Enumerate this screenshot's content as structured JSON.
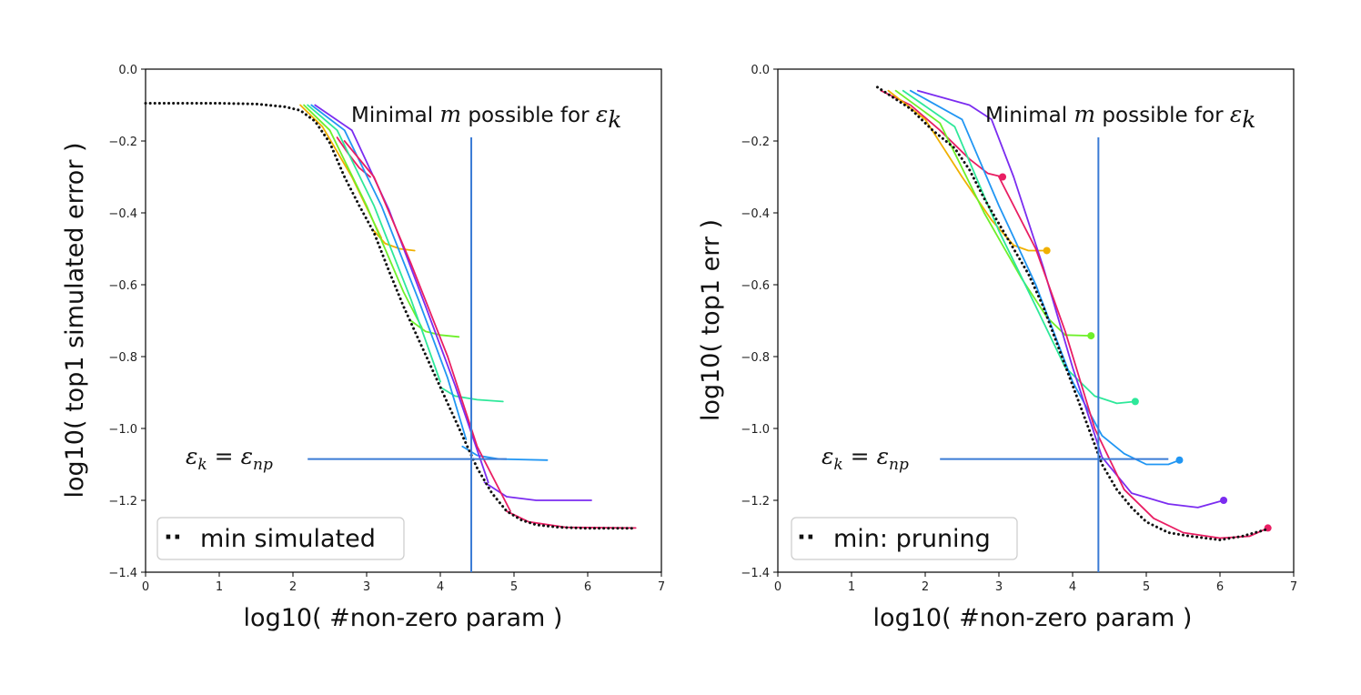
{
  "chart_data": [
    {
      "type": "line",
      "id": "left",
      "xlabel": "log10( #non-zero param )",
      "ylabel": "log10( top1 simulated error )",
      "xlim": [
        0,
        7
      ],
      "ylim": [
        -1.4,
        0.0
      ],
      "xticks": [
        "0",
        "1",
        "2",
        "3",
        "4",
        "5",
        "6",
        "7"
      ],
      "yticks": [
        "0.0",
        "−0.2",
        "−0.4",
        "−0.6",
        "−0.8",
        "−1.0",
        "−1.2",
        "−1.4"
      ],
      "annotation": {
        "text": "Minimal m possible for εk",
        "prefix": "Minimal ",
        "var": "m",
        "mid": " possible for ",
        "eps": "ε",
        "sub": "k"
      },
      "eps_label": {
        "eps1": "ε",
        "sub1": "k",
        "eq": " = ",
        "eps2": "ε",
        "sub2": "np"
      },
      "vline_x": 4.42,
      "hline": {
        "y": -1.085,
        "x_start": 2.2,
        "x_end": 4.9
      },
      "legend": {
        "text": "min simulated",
        "marker": "··"
      },
      "series": [
        {
          "name": "c1",
          "color": "#e91e63",
          "points": [
            [
              2.6,
              -0.19
            ],
            [
              2.75,
              -0.235
            ],
            [
              2.9,
              -0.275
            ],
            [
              3.05,
              -0.3
            ]
          ]
        },
        {
          "name": "c2",
          "color": "#f0b000",
          "points": [
            [
              3.1,
              -0.45
            ],
            [
              3.25,
              -0.485
            ],
            [
              3.45,
              -0.5
            ],
            [
              3.65,
              -0.505
            ]
          ]
        },
        {
          "name": "c3",
          "color": "#6ef02a",
          "points": [
            [
              3.6,
              -0.7
            ],
            [
              3.8,
              -0.73
            ],
            [
              4.0,
              -0.74
            ],
            [
              4.25,
              -0.745
            ]
          ]
        },
        {
          "name": "c4",
          "color": "#2ee89a",
          "points": [
            [
              4.0,
              -0.885
            ],
            [
              4.2,
              -0.91
            ],
            [
              4.5,
              -0.92
            ],
            [
              4.85,
              -0.925
            ]
          ]
        },
        {
          "name": "c5",
          "color": "#2196f3",
          "points": [
            [
              4.3,
              -1.05
            ],
            [
              4.5,
              -1.075
            ],
            [
              4.8,
              -1.085
            ],
            [
              5.45,
              -1.088
            ]
          ]
        },
        {
          "name": "c6",
          "color": "#7b2cf0",
          "points": [
            [
              4.6,
              -1.15
            ],
            [
              4.9,
              -1.19
            ],
            [
              5.3,
              -1.2
            ],
            [
              6.05,
              -1.2
            ]
          ]
        },
        {
          "name": "c7",
          "color": "#e91e63",
          "points": [
            [
              4.9,
              -1.23
            ],
            [
              5.2,
              -1.26
            ],
            [
              5.7,
              -1.275
            ],
            [
              6.65,
              -1.277
            ]
          ]
        },
        {
          "name": "f1",
          "color": "#f0b000",
          "points": [
            [
              2.1,
              -0.1
            ],
            [
              2.4,
              -0.16
            ],
            [
              2.8,
              -0.3
            ],
            [
              3.2,
              -0.47
            ]
          ]
        },
        {
          "name": "f2",
          "color": "#6ef02a",
          "points": [
            [
              2.15,
              -0.1
            ],
            [
              2.5,
              -0.17
            ],
            [
              3.0,
              -0.38
            ],
            [
              3.5,
              -0.62
            ],
            [
              3.75,
              -0.72
            ]
          ]
        },
        {
          "name": "f3",
          "color": "#2ee89a",
          "points": [
            [
              2.2,
              -0.1
            ],
            [
              2.6,
              -0.17
            ],
            [
              3.1,
              -0.38
            ],
            [
              3.6,
              -0.64
            ],
            [
              4.0,
              -0.87
            ]
          ]
        },
        {
          "name": "f4",
          "color": "#2196f3",
          "points": [
            [
              2.25,
              -0.1
            ],
            [
              2.7,
              -0.17
            ],
            [
              3.2,
              -0.38
            ],
            [
              3.7,
              -0.64
            ],
            [
              4.1,
              -0.86
            ],
            [
              4.35,
              -1.03
            ]
          ]
        },
        {
          "name": "f5",
          "color": "#7b2cf0",
          "points": [
            [
              2.3,
              -0.1
            ],
            [
              2.8,
              -0.17
            ],
            [
              3.3,
              -0.39
            ],
            [
              3.8,
              -0.66
            ],
            [
              4.2,
              -0.88
            ],
            [
              4.65,
              -1.15
            ]
          ]
        },
        {
          "name": "f6",
          "color": "#e91e63",
          "points": [
            [
              2.7,
              -0.2
            ],
            [
              3.1,
              -0.3
            ],
            [
              3.6,
              -0.54
            ],
            [
              4.1,
              -0.8
            ],
            [
              4.5,
              -1.05
            ],
            [
              4.95,
              -1.23
            ]
          ]
        },
        {
          "name": "min",
          "color": "#111111",
          "style": "dotted",
          "points": [
            [
              0.0,
              -0.095
            ],
            [
              1.0,
              -0.095
            ],
            [
              1.5,
              -0.097
            ],
            [
              1.9,
              -0.105
            ],
            [
              2.1,
              -0.115
            ],
            [
              2.3,
              -0.145
            ],
            [
              2.5,
              -0.205
            ],
            [
              2.7,
              -0.3
            ],
            [
              2.9,
              -0.38
            ],
            [
              3.1,
              -0.455
            ],
            [
              3.3,
              -0.56
            ],
            [
              3.5,
              -0.66
            ],
            [
              3.7,
              -0.75
            ],
            [
              3.9,
              -0.84
            ],
            [
              4.1,
              -0.93
            ],
            [
              4.3,
              -1.02
            ],
            [
              4.5,
              -1.11
            ],
            [
              4.7,
              -1.18
            ],
            [
              4.9,
              -1.23
            ],
            [
              5.1,
              -1.255
            ],
            [
              5.3,
              -1.268
            ],
            [
              5.6,
              -1.275
            ],
            [
              6.0,
              -1.278
            ],
            [
              6.65,
              -1.278
            ]
          ]
        }
      ]
    },
    {
      "type": "line",
      "id": "right",
      "xlabel": "log10( #non-zero param )",
      "ylabel": "log10( top1 err )",
      "xlim": [
        0,
        7
      ],
      "ylim": [
        -1.4,
        0.0
      ],
      "xticks": [
        "0",
        "1",
        "2",
        "3",
        "4",
        "5",
        "6",
        "7"
      ],
      "yticks": [
        "0.0",
        "−0.2",
        "−0.4",
        "−0.6",
        "−0.8",
        "−1.0",
        "−1.2",
        "−1.4"
      ],
      "annotation": {
        "text": "Minimal m possible for εk",
        "prefix": "Minimal ",
        "var": "m",
        "mid": " possible for ",
        "eps": "ε",
        "sub": "k"
      },
      "eps_label": {
        "eps1": "ε",
        "sub1": "k",
        "eq": " = ",
        "eps2": "ε",
        "sub2": "np"
      },
      "vline_x": 4.35,
      "hline": {
        "y": -1.085,
        "x_start": 2.2,
        "x_end": 5.3
      },
      "legend": {
        "text": "min: pruning",
        "marker": "··"
      },
      "series": [
        {
          "name": "c1",
          "color": "#e91e63",
          "end_marker": true,
          "points": [
            [
              1.4,
              -0.06
            ],
            [
              1.8,
              -0.1
            ],
            [
              2.2,
              -0.17
            ],
            [
              2.6,
              -0.25
            ],
            [
              2.85,
              -0.29
            ],
            [
              3.05,
              -0.3
            ]
          ]
        },
        {
          "name": "c2",
          "color": "#f0b000",
          "end_marker": true,
          "points": [
            [
              1.5,
              -0.06
            ],
            [
              2.0,
              -0.14
            ],
            [
              2.5,
              -0.3
            ],
            [
              2.9,
              -0.42
            ],
            [
              3.2,
              -0.49
            ],
            [
              3.4,
              -0.505
            ],
            [
              3.65,
              -0.505
            ]
          ]
        },
        {
          "name": "c3",
          "color": "#6ef02a",
          "end_marker": true,
          "points": [
            [
              1.6,
              -0.06
            ],
            [
              2.2,
              -0.15
            ],
            [
              2.8,
              -0.4
            ],
            [
              3.3,
              -0.58
            ],
            [
              3.65,
              -0.69
            ],
            [
              3.9,
              -0.74
            ],
            [
              4.25,
              -0.742
            ]
          ]
        },
        {
          "name": "c4",
          "color": "#2ee89a",
          "end_marker": true,
          "points": [
            [
              1.7,
              -0.06
            ],
            [
              2.4,
              -0.16
            ],
            [
              3.0,
              -0.45
            ],
            [
              3.5,
              -0.66
            ],
            [
              3.9,
              -0.83
            ],
            [
              4.3,
              -0.91
            ],
            [
              4.6,
              -0.93
            ],
            [
              4.85,
              -0.925
            ]
          ]
        },
        {
          "name": "c5",
          "color": "#2196f3",
          "end_marker": true,
          "points": [
            [
              1.8,
              -0.06
            ],
            [
              2.5,
              -0.14
            ],
            [
              3.0,
              -0.38
            ],
            [
              3.5,
              -0.6
            ],
            [
              4.0,
              -0.87
            ],
            [
              4.4,
              -1.02
            ],
            [
              4.7,
              -1.07
            ],
            [
              5.0,
              -1.1
            ],
            [
              5.3,
              -1.1
            ],
            [
              5.45,
              -1.088
            ]
          ]
        },
        {
          "name": "c6",
          "color": "#7b2cf0",
          "end_marker": true,
          "points": [
            [
              1.9,
              -0.06
            ],
            [
              2.6,
              -0.1
            ],
            [
              2.9,
              -0.14
            ],
            [
              3.2,
              -0.3
            ],
            [
              3.6,
              -0.55
            ],
            [
              4.0,
              -0.83
            ],
            [
              4.4,
              -1.08
            ],
            [
              4.8,
              -1.18
            ],
            [
              5.3,
              -1.21
            ],
            [
              5.7,
              -1.22
            ],
            [
              6.05,
              -1.2
            ]
          ]
        },
        {
          "name": "c7",
          "color": "#e91e63",
          "end_marker": true,
          "points": [
            [
              3.0,
              -0.3
            ],
            [
              3.5,
              -0.5
            ],
            [
              3.9,
              -0.73
            ],
            [
              4.3,
              -1.0
            ],
            [
              4.7,
              -1.17
            ],
            [
              5.1,
              -1.25
            ],
            [
              5.5,
              -1.29
            ],
            [
              6.0,
              -1.305
            ],
            [
              6.4,
              -1.3
            ],
            [
              6.65,
              -1.277
            ]
          ]
        },
        {
          "name": "min",
          "color": "#111111",
          "style": "dotted",
          "points": [
            [
              1.35,
              -0.05
            ],
            [
              1.5,
              -0.07
            ],
            [
              1.8,
              -0.11
            ],
            [
              2.1,
              -0.17
            ],
            [
              2.4,
              -0.22
            ],
            [
              2.6,
              -0.28
            ],
            [
              2.8,
              -0.36
            ],
            [
              3.0,
              -0.43
            ],
            [
              3.2,
              -0.5
            ],
            [
              3.4,
              -0.57
            ],
            [
              3.6,
              -0.66
            ],
            [
              3.8,
              -0.77
            ],
            [
              4.0,
              -0.88
            ],
            [
              4.2,
              -0.99
            ],
            [
              4.4,
              -1.1
            ],
            [
              4.6,
              -1.17
            ],
            [
              4.8,
              -1.22
            ],
            [
              5.0,
              -1.26
            ],
            [
              5.3,
              -1.29
            ],
            [
              5.6,
              -1.3
            ],
            [
              6.0,
              -1.31
            ],
            [
              6.3,
              -1.3
            ],
            [
              6.65,
              -1.28
            ]
          ]
        }
      ]
    }
  ]
}
